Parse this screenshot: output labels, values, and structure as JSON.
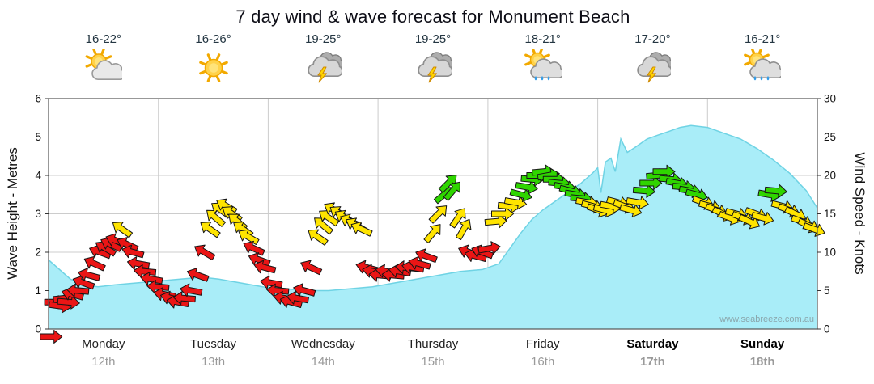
{
  "title": "7 day wind & wave forecast for Monument Beach",
  "watermark": "www.seabreeze.com.au",
  "days": [
    {
      "name": "Monday",
      "date": "12th",
      "temp": "16-22°",
      "icon": "partly-cloudy",
      "emphasis": false
    },
    {
      "name": "Tuesday",
      "date": "13th",
      "temp": "16-26°",
      "icon": "sunny",
      "emphasis": false
    },
    {
      "name": "Wednesday",
      "date": "14th",
      "temp": "19-25°",
      "icon": "thunderstorm",
      "emphasis": false
    },
    {
      "name": "Thursday",
      "date": "15th",
      "temp": "19-25°",
      "icon": "thunderstorm",
      "emphasis": false
    },
    {
      "name": "Friday",
      "date": "16th",
      "temp": "18-21°",
      "icon": "sunny-showers",
      "emphasis": false
    },
    {
      "name": "Saturday",
      "date": "17th",
      "temp": "17-20°",
      "icon": "thunderstorm",
      "emphasis": true
    },
    {
      "name": "Sunday",
      "date": "18th",
      "temp": "16-21°",
      "icon": "sunny-showers",
      "emphasis": true
    }
  ],
  "chart_data": {
    "type": "area",
    "title": "7 day wind & wave forecast for Monument Beach",
    "left_axis": {
      "label": "Wave Height - Metres",
      "min": 0,
      "max": 6,
      "ticks": [
        0,
        1,
        2,
        3,
        4,
        5,
        6
      ]
    },
    "right_axis": {
      "label": "Wind Speed - Knots",
      "min": 0,
      "max": 30,
      "ticks": [
        0,
        5,
        10,
        15,
        20,
        25,
        30
      ]
    },
    "x_categories": [
      "Monday 12th",
      "Tuesday 13th",
      "Wednesday 14th",
      "Thursday 15th",
      "Friday 16th",
      "Saturday 17th",
      "Sunday 18th"
    ],
    "plot": {
      "background": "#ffffff",
      "border_color": "#555555",
      "grid_color": "#cccccc",
      "grid": true
    },
    "wave_series": {
      "name": "Wave Height",
      "unit": "m",
      "fill": "#a9edf8",
      "line": "#6fd3e4",
      "points": [
        [
          0,
          1.8
        ],
        [
          0.1,
          1.55
        ],
        [
          0.2,
          1.3
        ],
        [
          0.32,
          1.15
        ],
        [
          0.45,
          1.1
        ],
        [
          0.6,
          1.15
        ],
        [
          0.8,
          1.2
        ],
        [
          1.0,
          1.25
        ],
        [
          1.2,
          1.3
        ],
        [
          1.4,
          1.35
        ],
        [
          1.55,
          1.3
        ],
        [
          1.75,
          1.2
        ],
        [
          1.95,
          1.1
        ],
        [
          2.15,
          1.05
        ],
        [
          2.35,
          1.0
        ],
        [
          2.55,
          1.0
        ],
        [
          2.75,
          1.05
        ],
        [
          2.95,
          1.1
        ],
        [
          3.15,
          1.2
        ],
        [
          3.35,
          1.3
        ],
        [
          3.55,
          1.4
        ],
        [
          3.75,
          1.5
        ],
        [
          3.95,
          1.55
        ],
        [
          4.1,
          1.7
        ],
        [
          4.2,
          2.1
        ],
        [
          4.3,
          2.5
        ],
        [
          4.4,
          2.85
        ],
        [
          4.5,
          3.1
        ],
        [
          4.6,
          3.3
        ],
        [
          4.75,
          3.6
        ],
        [
          4.85,
          3.8
        ],
        [
          4.95,
          4.05
        ],
        [
          5.0,
          4.2
        ],
        [
          5.03,
          3.55
        ],
        [
          5.07,
          4.35
        ],
        [
          5.12,
          4.45
        ],
        [
          5.16,
          4.1
        ],
        [
          5.21,
          4.95
        ],
        [
          5.27,
          4.6
        ],
        [
          5.35,
          4.75
        ],
        [
          5.45,
          4.95
        ],
        [
          5.55,
          5.05
        ],
        [
          5.65,
          5.15
        ],
        [
          5.75,
          5.25
        ],
        [
          5.85,
          5.3
        ],
        [
          6.0,
          5.25
        ],
        [
          6.15,
          5.1
        ],
        [
          6.3,
          4.95
        ],
        [
          6.45,
          4.7
        ],
        [
          6.6,
          4.4
        ],
        [
          6.75,
          4.05
        ],
        [
          6.9,
          3.6
        ],
        [
          7.0,
          3.15
        ]
      ]
    },
    "wind_series": {
      "name": "Wind Speed",
      "unit": "knots",
      "colors": {
        "light_hex": "#ea1515",
        "moderate_hex": "#ffe400",
        "fresh_hex": "#2fd500",
        "moderate_min_knots": 12,
        "fresh_min_knots": 17
      },
      "arrows": [
        [
          0.02,
          -1,
          0
        ],
        [
          0.06,
          3.5,
          0
        ],
        [
          0.1,
          3,
          8
        ],
        [
          0.14,
          4,
          -6
        ],
        [
          0.18,
          3.5,
          5
        ],
        [
          0.22,
          4.5,
          195
        ],
        [
          0.27,
          5,
          185
        ],
        [
          0.32,
          6,
          200
        ],
        [
          0.37,
          7,
          195
        ],
        [
          0.42,
          8.5,
          205
        ],
        [
          0.47,
          10,
          200
        ],
        [
          0.52,
          10.5,
          210
        ],
        [
          0.57,
          11,
          205
        ],
        [
          0.62,
          11.5,
          200
        ],
        [
          0.67,
          13,
          215
        ],
        [
          0.72,
          11,
          205
        ],
        [
          0.77,
          10,
          195
        ],
        [
          0.82,
          8.5,
          190
        ],
        [
          0.88,
          7.5,
          185
        ],
        [
          0.94,
          6.5,
          190
        ],
        [
          1.0,
          5.5,
          185
        ],
        [
          1.06,
          4.5,
          190
        ],
        [
          1.12,
          4,
          195
        ],
        [
          1.18,
          3.5,
          190
        ],
        [
          1.24,
          4,
          185
        ],
        [
          1.3,
          5,
          190
        ],
        [
          1.36,
          7,
          200
        ],
        [
          1.42,
          10,
          210
        ],
        [
          1.47,
          13,
          215
        ],
        [
          1.52,
          14.5,
          220
        ],
        [
          1.57,
          15.5,
          215
        ],
        [
          1.62,
          16,
          210
        ],
        [
          1.67,
          15,
          215
        ],
        [
          1.72,
          14,
          220
        ],
        [
          1.77,
          13,
          215
        ],
        [
          1.82,
          12,
          210
        ],
        [
          1.87,
          10.5,
          205
        ],
        [
          1.92,
          9,
          200
        ],
        [
          1.97,
          8,
          195
        ],
        [
          2.03,
          6,
          190
        ],
        [
          2.09,
          5,
          185
        ],
        [
          2.15,
          4,
          190
        ],
        [
          2.21,
          3.5,
          195
        ],
        [
          2.27,
          4,
          190
        ],
        [
          2.33,
          5,
          195
        ],
        [
          2.39,
          8,
          205
        ],
        [
          2.45,
          12,
          215
        ],
        [
          2.5,
          13.5,
          220
        ],
        [
          2.55,
          14.5,
          215
        ],
        [
          2.6,
          15.5,
          210
        ],
        [
          2.65,
          15,
          215
        ],
        [
          2.7,
          14.5,
          210
        ],
        [
          2.75,
          14,
          205
        ],
        [
          2.8,
          13.5,
          210
        ],
        [
          2.85,
          13,
          205
        ],
        [
          2.9,
          8,
          195
        ],
        [
          2.96,
          7.5,
          190
        ],
        [
          3.02,
          7,
          185
        ],
        [
          3.08,
          7.5,
          190
        ],
        [
          3.14,
          7,
          185
        ],
        [
          3.2,
          7.5,
          190
        ],
        [
          3.26,
          8,
          185
        ],
        [
          3.32,
          8,
          190
        ],
        [
          3.38,
          8.5,
          195
        ],
        [
          3.44,
          9.5,
          200
        ],
        [
          3.5,
          12.5,
          310
        ],
        [
          3.55,
          15,
          315
        ],
        [
          3.6,
          17.5,
          320
        ],
        [
          3.64,
          19,
          315
        ],
        [
          3.68,
          18,
          310
        ],
        [
          3.73,
          14.5,
          305
        ],
        [
          3.78,
          13,
          300
        ],
        [
          3.83,
          10,
          200
        ],
        [
          3.89,
          9.5,
          195
        ],
        [
          3.95,
          10,
          200
        ],
        [
          4.01,
          10.5,
          350
        ],
        [
          4.07,
          14,
          355
        ],
        [
          4.13,
          15,
          0
        ],
        [
          4.19,
          16,
          5
        ],
        [
          4.25,
          16.5,
          10
        ],
        [
          4.3,
          17.5,
          15
        ],
        [
          4.35,
          18.5,
          10
        ],
        [
          4.4,
          19.5,
          5
        ],
        [
          4.45,
          20,
          0
        ],
        [
          4.5,
          20.5,
          -5
        ],
        [
          4.55,
          20,
          -10
        ],
        [
          4.6,
          19.5,
          0
        ],
        [
          4.65,
          19,
          5
        ],
        [
          4.7,
          18.5,
          10
        ],
        [
          4.75,
          18,
          15
        ],
        [
          4.8,
          17.5,
          10
        ],
        [
          4.85,
          17,
          5
        ],
        [
          4.9,
          16.5,
          10
        ],
        [
          4.95,
          16,
          15
        ],
        [
          5.0,
          15.5,
          20
        ],
        [
          5.06,
          15.5,
          15
        ],
        [
          5.12,
          16,
          10
        ],
        [
          5.18,
          16.5,
          15
        ],
        [
          5.24,
          16,
          20
        ],
        [
          5.3,
          15.5,
          15
        ],
        [
          5.36,
          16.5,
          10
        ],
        [
          5.42,
          18,
          5
        ],
        [
          5.48,
          19,
          0
        ],
        [
          5.54,
          20,
          -5
        ],
        [
          5.6,
          20.5,
          0
        ],
        [
          5.66,
          19.5,
          5
        ],
        [
          5.72,
          19,
          10
        ],
        [
          5.78,
          18.5,
          5
        ],
        [
          5.84,
          18,
          10
        ],
        [
          5.9,
          17.5,
          15
        ],
        [
          5.96,
          16.5,
          20
        ],
        [
          6.02,
          16,
          15
        ],
        [
          6.08,
          15.5,
          20
        ],
        [
          6.14,
          15,
          25
        ],
        [
          6.2,
          14.5,
          20
        ],
        [
          6.26,
          15,
          15
        ],
        [
          6.32,
          14.5,
          20
        ],
        [
          6.38,
          14,
          25
        ],
        [
          6.44,
          15,
          20
        ],
        [
          6.5,
          14.5,
          15
        ],
        [
          6.56,
          17.5,
          10
        ],
        [
          6.62,
          18,
          5
        ],
        [
          6.68,
          16,
          15
        ],
        [
          6.74,
          15.5,
          20
        ],
        [
          6.8,
          15,
          25
        ],
        [
          6.86,
          14,
          20
        ],
        [
          6.92,
          13.5,
          25
        ],
        [
          6.97,
          13,
          20
        ]
      ]
    }
  }
}
